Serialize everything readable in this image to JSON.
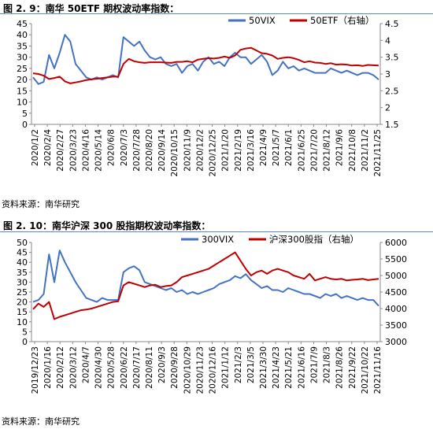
{
  "figures": [
    {
      "title": "图 2. 9：南华 50ETF 期权波动率指数：",
      "source": "资料来源：南华研究"
    },
    {
      "title": "图 2. 10：南华沪深 300 股指期权波动率指数：",
      "source": "资料来源：南华研究"
    }
  ],
  "chart_data": [
    {
      "type": "line",
      "title": "",
      "x_labels": [
        "2020/1/2",
        "2020/2/4",
        "2020/2/27",
        "2020/3/23",
        "2020/4/16",
        "2020/5/14",
        "2020/6/8",
        "2020/7/3",
        "2020/7/28",
        "2020/8/20",
        "2020/9/14",
        "2020/10/15",
        "2020/11/9",
        "2020/12/2",
        "2020/12/25",
        "2021/1/20",
        "2021/2/19",
        "2021/3/16",
        "2021/4/9",
        "2021/5/7",
        "2021/6/1",
        "2021/6/25",
        "2021/7/20",
        "2021/8/12",
        "2021/9/6",
        "2021/10/8",
        "2021/11/2",
        "2021/11/25"
      ],
      "y_left": {
        "ticks": [
          "0",
          "5",
          "10",
          "15",
          "20",
          "25",
          "30",
          "35",
          "40",
          "45"
        ],
        "range": [
          0,
          45
        ]
      },
      "y_right": {
        "ticks": [
          "1.5",
          "2",
          "2.5",
          "3",
          "3.5",
          "4",
          "4.5"
        ],
        "range": [
          1.5,
          4.5
        ]
      },
      "legend_position": "top-right",
      "series": [
        {
          "name": "50VIX",
          "axis": "left",
          "color": "#4472c4",
          "values": [
            21,
            18,
            19,
            31,
            25,
            32,
            40,
            37,
            27,
            24,
            21,
            20,
            21,
            20,
            21,
            22,
            21,
            39,
            37,
            35,
            37,
            33,
            30,
            29,
            30,
            27,
            26,
            27,
            23,
            26,
            27,
            24,
            28,
            30,
            27,
            28,
            26,
            30,
            32,
            30,
            30,
            27,
            29,
            31,
            28,
            22,
            24,
            28,
            25,
            26,
            24,
            25,
            24,
            23,
            23,
            23,
            25,
            24,
            23,
            24,
            23,
            22,
            23,
            23,
            22,
            20
          ]
        },
        {
          "name": "50ETF（右轴）",
          "axis": "right",
          "color": "#c00000",
          "values": [
            3.02,
            3.0,
            2.95,
            2.85,
            2.88,
            2.92,
            2.78,
            2.72,
            2.75,
            2.78,
            2.82,
            2.84,
            2.86,
            2.88,
            2.9,
            2.92,
            2.92,
            3.3,
            3.45,
            3.38,
            3.35,
            3.33,
            3.35,
            3.35,
            3.35,
            3.34,
            3.33,
            3.36,
            3.36,
            3.38,
            3.35,
            3.43,
            3.45,
            3.47,
            3.46,
            3.48,
            3.52,
            3.48,
            3.55,
            3.72,
            3.76,
            3.78,
            3.7,
            3.62,
            3.6,
            3.55,
            3.45,
            3.48,
            3.5,
            3.47,
            3.42,
            3.35,
            3.38,
            3.34,
            3.33,
            3.3,
            3.32,
            3.28,
            3.29,
            3.28,
            3.25,
            3.26,
            3.24,
            3.27,
            3.26,
            3.25
          ]
        }
      ]
    },
    {
      "type": "line",
      "title": "",
      "x_labels": [
        "2019/12/23",
        "2020/1/16",
        "2020/2/12",
        "2020/3/12",
        "2020/4/7",
        "2020/4/30",
        "2020/5/28",
        "2020/6/22",
        "2020/7/17",
        "2020/8/11",
        "2020/9/3",
        "2020/9/28",
        "2020/10/29",
        "2020/11/23",
        "2020/12/16",
        "2021/1/12",
        "2021/2/3",
        "2021/3/5",
        "2021/3/30",
        "2021/4/23",
        "2021/5/21",
        "2021/6/16",
        "2021/7/9",
        "2021/8/3",
        "2021/8/26",
        "2021/9/22",
        "2021/10/22",
        "2021/11/16"
      ],
      "y_left": {
        "ticks": [
          "0",
          "5",
          "10",
          "15",
          "20",
          "25",
          "30",
          "35",
          "40",
          "45",
          "50"
        ],
        "range": [
          0,
          50
        ]
      },
      "y_right": {
        "ticks": [
          "3000",
          "3500",
          "4000",
          "4500",
          "5000",
          "5500",
          "6000"
        ],
        "range": [
          3000,
          6000
        ]
      },
      "legend_position": "top-right",
      "series": [
        {
          "name": "300VIX",
          "axis": "left",
          "color": "#4472c4",
          "values": [
            20,
            21,
            24,
            44,
            30,
            46,
            40,
            35,
            30,
            26,
            22,
            21,
            20,
            22,
            21,
            21,
            21,
            35,
            37,
            38,
            36,
            30,
            29,
            28,
            27,
            26,
            27,
            25,
            26,
            24,
            25,
            24,
            25,
            26,
            27,
            29,
            30,
            31,
            33,
            32,
            34,
            31,
            29,
            27,
            28,
            26,
            26,
            25,
            27,
            26,
            25,
            24,
            24,
            23,
            22,
            24,
            23,
            24,
            22,
            23,
            22,
            21,
            22,
            21,
            21,
            18
          ]
        },
        {
          "name": "沪深300股指（右轴）",
          "axis": "right",
          "color": "#c00000",
          "values": [
            3980,
            4150,
            4050,
            4200,
            3680,
            3750,
            3800,
            3850,
            3900,
            3950,
            3970,
            4000,
            4050,
            4100,
            4150,
            4200,
            4220,
            4700,
            4800,
            4750,
            4700,
            4650,
            4700,
            4720,
            4650,
            4680,
            4700,
            4800,
            4950,
            5000,
            5050,
            5100,
            5150,
            5200,
            5300,
            5400,
            5500,
            5600,
            5700,
            5450,
            5200,
            5000,
            5100,
            5150,
            5050,
            5150,
            5200,
            5150,
            5100,
            5000,
            4950,
            4900,
            5050,
            4850,
            4900,
            4950,
            4900,
            4880,
            4900,
            4850,
            4870,
            4880,
            4900,
            4860,
            4880,
            4900
          ]
        }
      ]
    }
  ]
}
